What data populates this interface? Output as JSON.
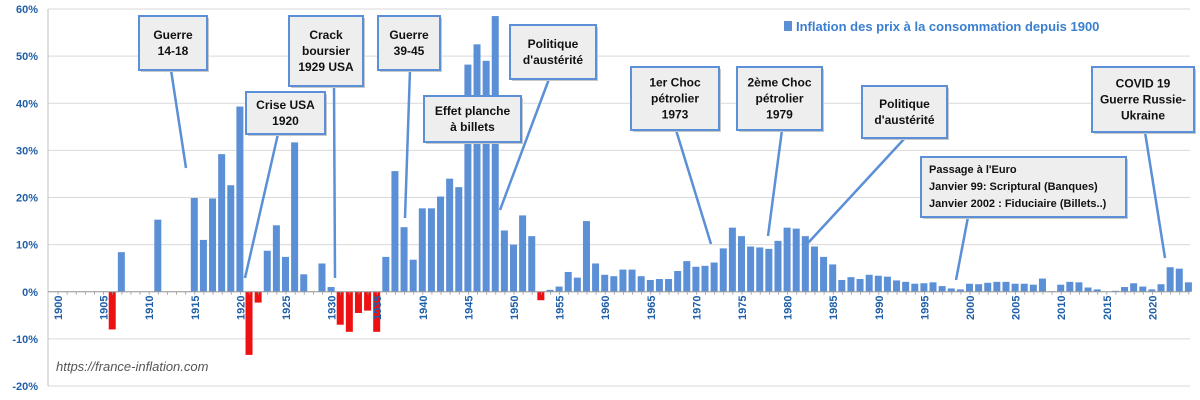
{
  "chart_data": {
    "type": "bar",
    "title": "",
    "legend": {
      "label": "Inflation des prix à la consommation depuis 1900",
      "placement": "top-right"
    },
    "ylim": [
      -20,
      60
    ],
    "y_ticks": [
      "-20%",
      "-10%",
      "0%",
      "10%",
      "20%",
      "30%",
      "40%",
      "50%",
      "60%"
    ],
    "x_ticks": [
      "1900",
      "1905",
      "1910",
      "1915",
      "1920",
      "1925",
      "1930",
      "1935",
      "1940",
      "1945",
      "1950",
      "1955",
      "1960",
      "1965",
      "1970",
      "1975",
      "1980",
      "1985",
      "1990",
      "1995",
      "2000",
      "2005",
      "2010",
      "2015",
      "2020"
    ],
    "grid": true,
    "colors": {
      "positive": "#5b8fd6",
      "negative": "#ee1111",
      "connector": "#5b8fd6",
      "box_border": "#5b8fd6",
      "box_fill": "#eeeeee",
      "grid": "#d9d9d9"
    },
    "x": [
      1900,
      1901,
      1902,
      1903,
      1904,
      1905,
      1906,
      1907,
      1908,
      1909,
      1910,
      1911,
      1912,
      1913,
      1914,
      1915,
      1916,
      1917,
      1918,
      1919,
      1920,
      1921,
      1922,
      1923,
      1924,
      1925,
      1926,
      1927,
      1928,
      1929,
      1930,
      1931,
      1932,
      1933,
      1934,
      1935,
      1936,
      1937,
      1938,
      1939,
      1940,
      1941,
      1942,
      1943,
      1944,
      1945,
      1946,
      1947,
      1948,
      1949,
      1950,
      1951,
      1952,
      1953,
      1954,
      1955,
      1956,
      1957,
      1958,
      1959,
      1960,
      1961,
      1962,
      1963,
      1964,
      1965,
      1966,
      1967,
      1968,
      1969,
      1970,
      1971,
      1972,
      1973,
      1974,
      1975,
      1976,
      1977,
      1978,
      1979,
      1980,
      1981,
      1982,
      1983,
      1984,
      1985,
      1986,
      1987,
      1988,
      1989,
      1990,
      1991,
      1992,
      1993,
      1994,
      1995,
      1996,
      1997,
      1998,
      1999,
      2000,
      2001,
      2002,
      2003,
      2004,
      2005,
      2006,
      2007,
      2008,
      2009,
      2010,
      2011,
      2012,
      2013,
      2014,
      2015,
      2016,
      2017,
      2018,
      2019,
      2020,
      2021,
      2022,
      2023,
      2024
    ],
    "values": [
      0,
      0,
      0,
      0,
      0,
      0,
      -8,
      8.4,
      0,
      0,
      0,
      15.3,
      0,
      0,
      0,
      19.9,
      11,
      19.8,
      29.2,
      22.6,
      39.3,
      -13.4,
      -2.3,
      8.7,
      14.1,
      7.4,
      31.7,
      3.7,
      0,
      6,
      1,
      -7,
      -8.5,
      -4.5,
      -4,
      -8.5,
      7.4,
      25.6,
      13.7,
      6.8,
      17.7,
      17.7,
      20.2,
      24,
      22.2,
      48.2,
      52.5,
      49,
      58.5,
      13,
      10,
      16.2,
      11.8,
      -1.8,
      0.4,
      1.1,
      4.2,
      3,
      15,
      6,
      3.6,
      3.3,
      4.7,
      4.7,
      3.3,
      2.5,
      2.7,
      2.7,
      4.4,
      6.5,
      5.3,
      5.5,
      6.2,
      9.2,
      13.6,
      11.8,
      9.6,
      9.4,
      9.1,
      10.8,
      13.6,
      13.4,
      11.8,
      9.6,
      7.4,
      5.8,
      2.5,
      3.1,
      2.7,
      3.6,
      3.4,
      3.2,
      2.4,
      2.1,
      1.7,
      1.8,
      2,
      1.2,
      0.7,
      0.5,
      1.7,
      1.6,
      1.9,
      2.1,
      2.1,
      1.7,
      1.7,
      1.5,
      2.8,
      0.1,
      1.5,
      2.1,
      2,
      0.9,
      0.5,
      0,
      0.2,
      1,
      1.8,
      1.1,
      0.5,
      1.6,
      5.2,
      4.9,
      2
    ],
    "annotations": [
      {
        "lines": [
          "Guerre",
          "14-18"
        ]
      },
      {
        "lines": [
          "Crise USA",
          "1920"
        ]
      },
      {
        "lines": [
          "Crack",
          "boursier",
          "1929 USA"
        ]
      },
      {
        "lines": [
          "Guerre",
          "39-45"
        ]
      },
      {
        "lines": [
          "Effet planche",
          "à billets"
        ]
      },
      {
        "lines": [
          "Politique",
          "d'austérité"
        ]
      },
      {
        "lines": [
          "1er Choc",
          "pétrolier",
          "1973"
        ]
      },
      {
        "lines": [
          "2ème Choc",
          "pétrolier",
          "1979"
        ]
      },
      {
        "lines": [
          "Politique",
          "d'austérité"
        ]
      },
      {
        "lines": [
          "Passage à l'Euro",
          "Janvier 99: Scriptural (Banques)",
          "Janvier 2002 : Fiduciaire (Billets..)"
        ]
      },
      {
        "lines": [
          "COVID 19",
          "Guerre Russie-",
          "Ukraine"
        ]
      }
    ],
    "watermark": "https://france-inflation.com"
  }
}
